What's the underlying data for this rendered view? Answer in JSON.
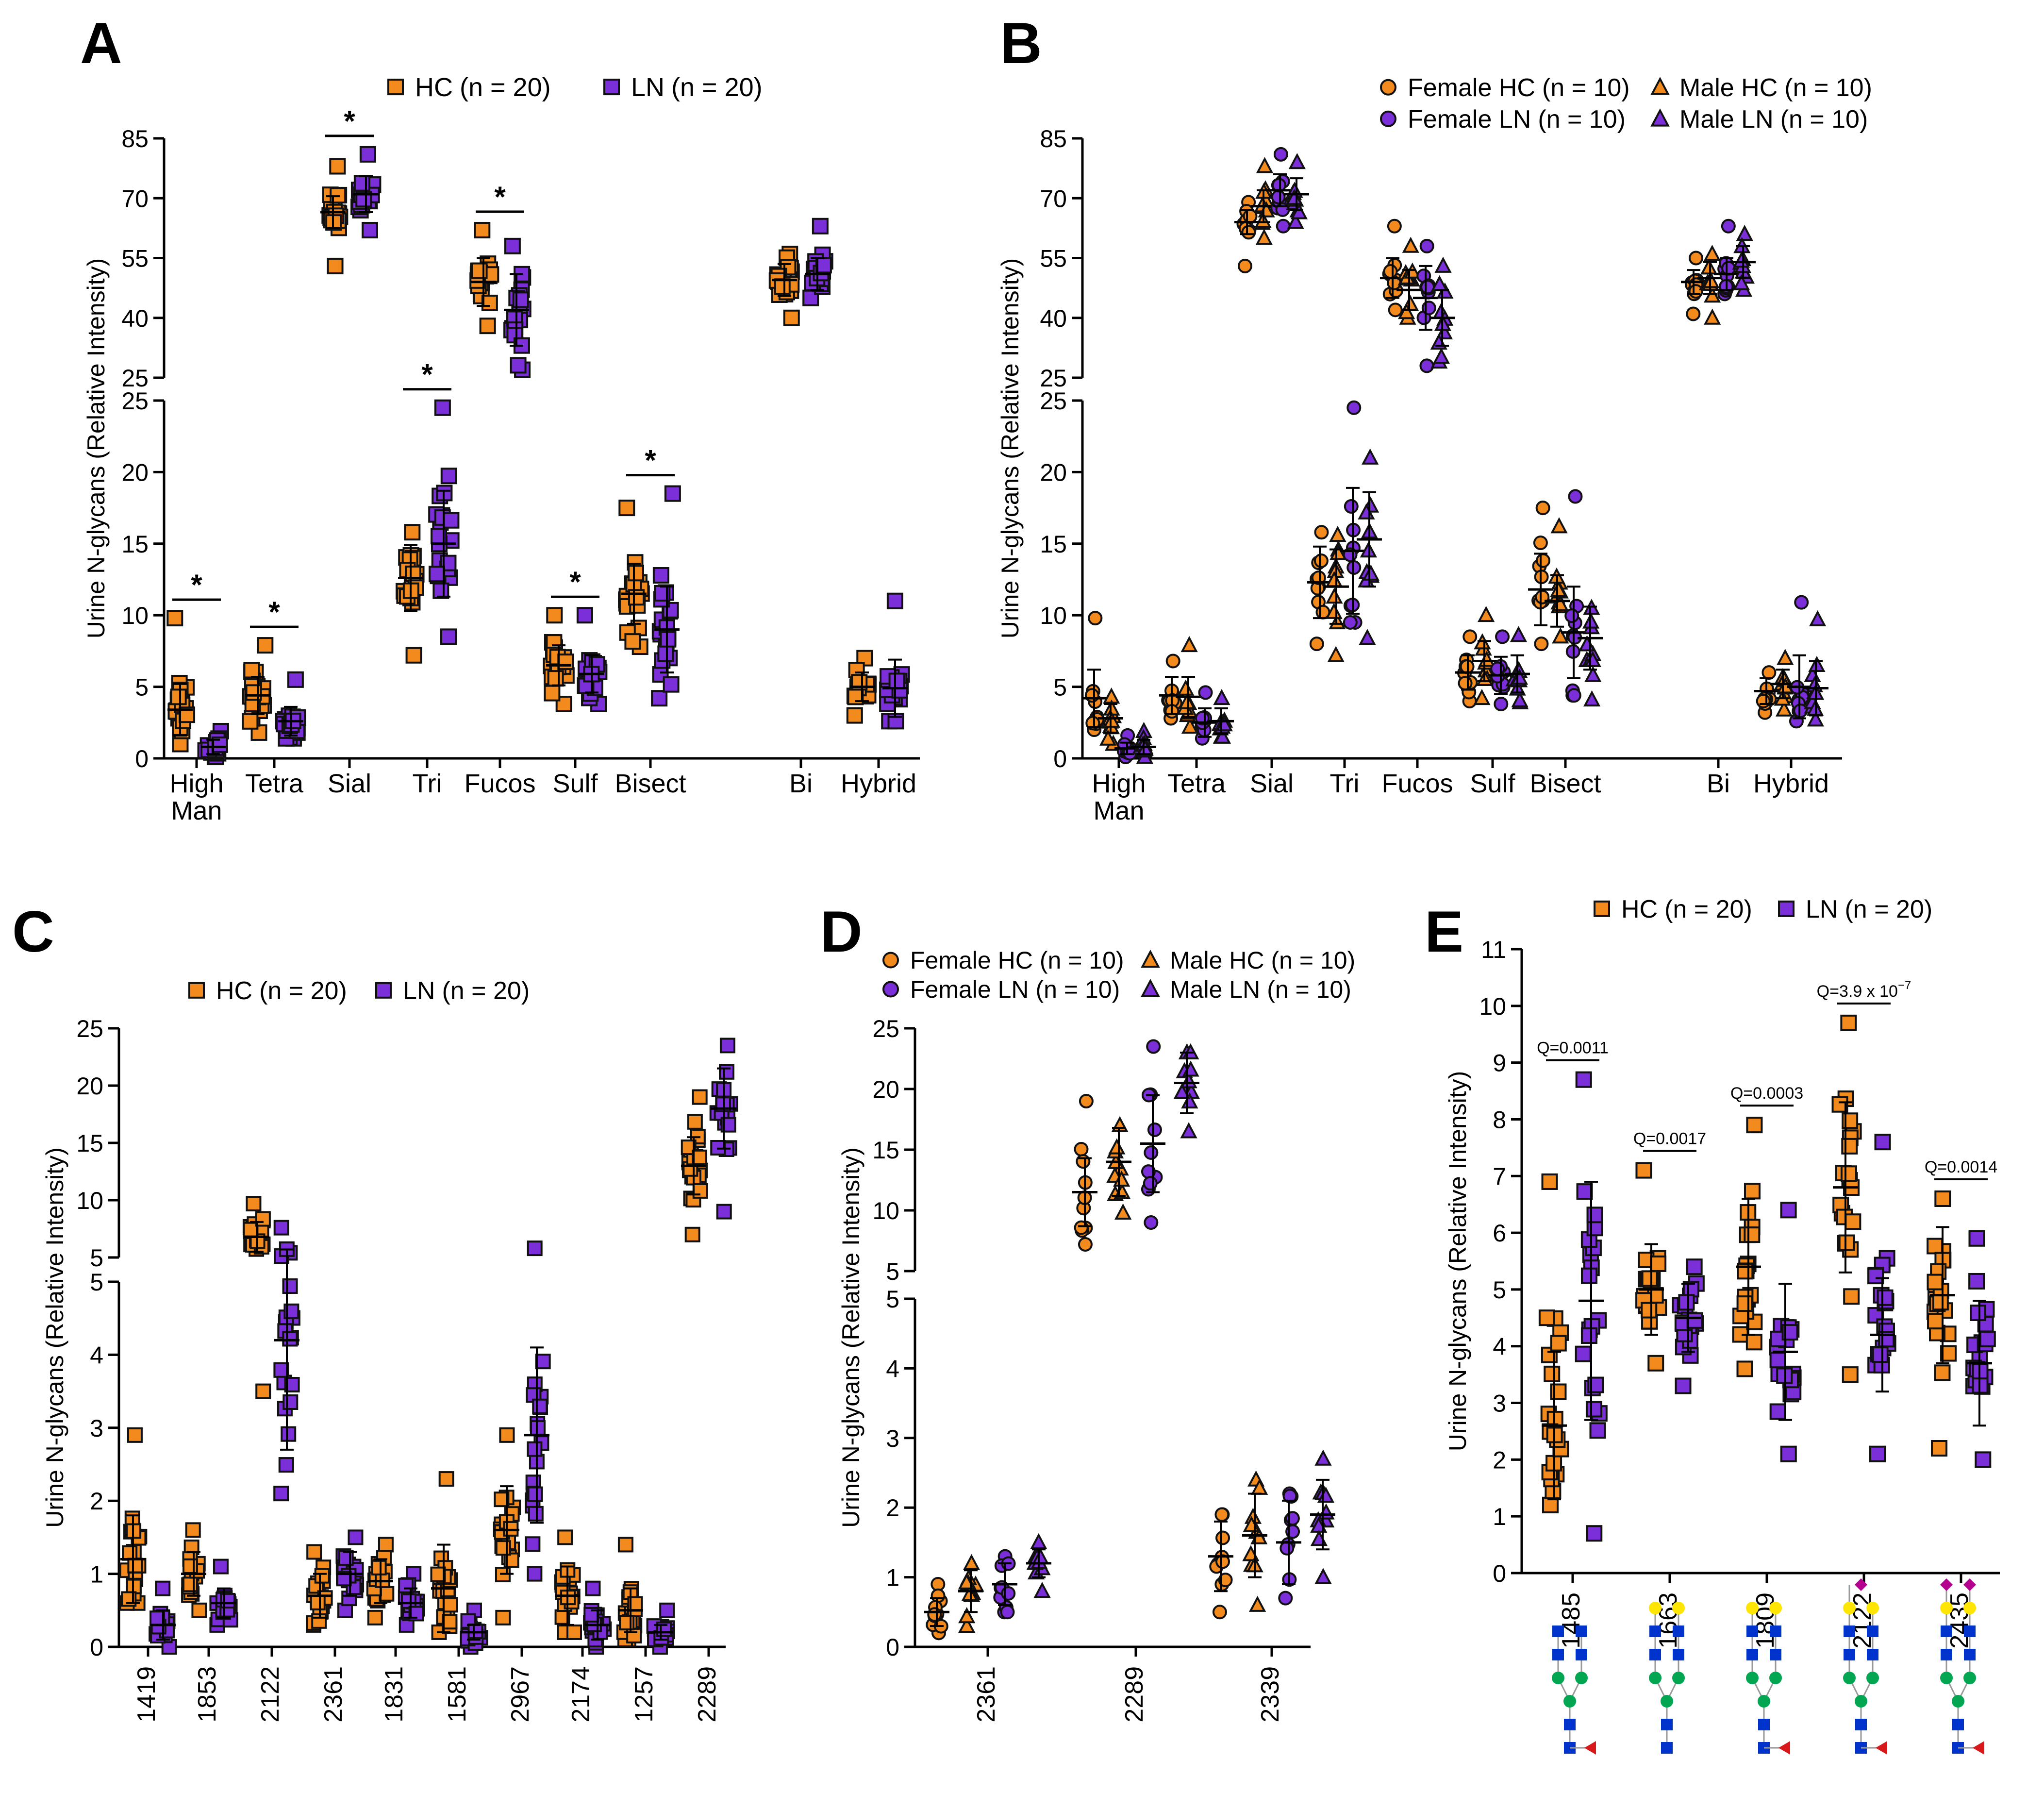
{
  "figure": {
    "colors": {
      "hc": "#F28A1E",
      "ln": "#7B2FD9",
      "outline": "#111111",
      "mannose": "#00A651",
      "glcnac": "#0033CC",
      "galactose": "#FFE600",
      "fucose": "#D7191C",
      "neuac": "#B5008F"
    }
  },
  "chart_data": [
    {
      "panel": "A",
      "type": "scatter",
      "ylabel": "Urine N-glycans (Relative Intensity)",
      "legend": [
        {
          "label": "HC",
          "n": "(n = 20)",
          "shape": "square",
          "color": "#F28A1E"
        },
        {
          "label": "LN",
          "n": "(n = 20)",
          "shape": "square",
          "color": "#7B2FD9"
        }
      ],
      "categories": [
        "High Man",
        "Tetra",
        "Sial",
        "Tri",
        "Fucos",
        "Sulf",
        "Bisect",
        "Bi",
        "Hybrid"
      ],
      "upper_ticks": [
        "85",
        "70",
        "55",
        "40",
        "25"
      ],
      "lower_ticks": [
        "25",
        "20",
        "15",
        "10",
        "5",
        "0"
      ],
      "ylim_lower": [
        0,
        25
      ],
      "ylim_upper": [
        25,
        85
      ],
      "significance": [
        {
          "category": "High Man",
          "label": "*"
        },
        {
          "category": "Tetra",
          "label": "*"
        },
        {
          "category": "Sial",
          "label": "*"
        },
        {
          "category": "Tri",
          "label": "*"
        },
        {
          "category": "Fucos",
          "label": "*"
        },
        {
          "category": "Sulf",
          "label": "*"
        },
        {
          "category": "Bisect",
          "label": "*"
        }
      ],
      "series": [
        {
          "name": "HC",
          "mean": [
            3.4,
            4.4,
            66.5,
            12.6,
            49,
            6.5,
            11.5,
            49.5,
            5.0
          ],
          "sd": [
            1.8,
            1.3,
            4,
            2.3,
            6,
            1.4,
            2.1,
            4,
            1.0
          ],
          "min": [
            1.0,
            1.8,
            53,
            7.2,
            38,
            3.8,
            7.8,
            40,
            3.0
          ],
          "max": [
            9.8,
            7.9,
            78,
            15.8,
            62,
            10.0,
            17.5,
            56,
            7.0
          ]
        },
        {
          "name": "LN",
          "mean": [
            0.8,
            2.6,
            71,
            15.0,
            42,
            5.9,
            9.0,
            51,
            4.9
          ],
          "sd": [
            0.5,
            1.0,
            4.5,
            3.7,
            9,
            1.3,
            3.0,
            4,
            2.0
          ],
          "min": [
            0.1,
            1.4,
            62,
            8.5,
            27,
            3.8,
            4.2,
            45,
            2.6
          ],
          "max": [
            1.9,
            5.5,
            81,
            24.5,
            58,
            10.0,
            18.5,
            63,
            11.0
          ]
        }
      ]
    },
    {
      "panel": "B",
      "type": "scatter",
      "ylabel": "Urine N-glycans (Relative Intensity)",
      "legend": [
        {
          "label": "Female HC",
          "n": "(n = 10)",
          "shape": "circle",
          "color": "#F28A1E"
        },
        {
          "label": "Male HC",
          "n": "(n = 10)",
          "shape": "triangle",
          "color": "#F28A1E"
        },
        {
          "label": "Female LN",
          "n": "(n = 10)",
          "shape": "circle",
          "color": "#7B2FD9"
        },
        {
          "label": "Male LN",
          "n": "(n = 10)",
          "shape": "triangle",
          "color": "#7B2FD9"
        }
      ],
      "categories": [
        "High Man",
        "Tetra",
        "Sial",
        "Tri",
        "Fucos",
        "Sulf",
        "Bisect",
        "Bi",
        "Hybrid"
      ],
      "upper_ticks": [
        "85",
        "70",
        "55",
        "40",
        "25"
      ],
      "lower_ticks": [
        "25",
        "20",
        "15",
        "10",
        "5",
        "0"
      ],
      "ylim_lower": [
        0,
        25
      ],
      "ylim_upper": [
        25,
        85
      ],
      "series": [
        {
          "name": "Female HC",
          "mean": [
            4.2,
            4.4,
            64,
            12.3,
            50,
            6.0,
            11.8,
            49,
            4.7
          ],
          "sd": [
            2.0,
            1.3,
            3,
            2.5,
            5,
            1.2,
            2.5,
            3,
            0.9
          ],
          "min": [
            2.0,
            2.8,
            53,
            8.0,
            42,
            4.0,
            8.0,
            41,
            3.2
          ],
          "max": [
            9.8,
            6.8,
            69,
            15.8,
            63,
            8.5,
            17.5,
            55,
            6.0
          ]
        },
        {
          "name": "Male HC",
          "mean": [
            2.8,
            4.3,
            68,
            12.0,
            47,
            6.8,
            11.0,
            50,
            5.2
          ],
          "sd": [
            1.0,
            1.4,
            4,
            2.6,
            5,
            1.4,
            1.8,
            4,
            1.0
          ],
          "min": [
            1.0,
            2.2,
            60,
            7.2,
            40,
            4.2,
            8.5,
            40,
            3.4
          ],
          "max": [
            4.3,
            7.9,
            78,
            15.6,
            58,
            10.0,
            16.2,
            56,
            7.0
          ]
        },
        {
          "name": "Female LN",
          "mean": [
            0.7,
            2.5,
            72,
            14.5,
            45,
            5.8,
            8.8,
            51,
            5.0
          ],
          "sd": [
            0.4,
            1.0,
            4,
            4.4,
            8,
            1.3,
            3.2,
            4,
            2.2
          ],
          "min": [
            0.1,
            1.4,
            63,
            9.5,
            28,
            3.8,
            4.4,
            46,
            2.6
          ],
          "max": [
            1.6,
            4.6,
            81,
            24.5,
            58,
            8.5,
            18.3,
            63,
            10.9
          ]
        },
        {
          "name": "Male LN",
          "mean": [
            0.8,
            2.6,
            71,
            15.3,
            40,
            5.9,
            8.4,
            54,
            4.9
          ],
          "sd": [
            0.5,
            0.9,
            4,
            3.3,
            7,
            1.3,
            2.2,
            4,
            1.9
          ],
          "min": [
            0.1,
            1.5,
            64,
            8.4,
            29,
            3.9,
            4.1,
            47,
            2.7
          ],
          "max": [
            1.9,
            4.2,
            79,
            21.0,
            53,
            8.6,
            10.5,
            61,
            9.7
          ]
        }
      ]
    },
    {
      "panel": "C",
      "type": "scatter",
      "ylabel": "Urine N-glycans (Relative Intensity)",
      "legend": [
        {
          "label": "HC",
          "n": "(n = 20)",
          "shape": "square",
          "color": "#F28A1E"
        },
        {
          "label": "LN",
          "n": "(n = 20)",
          "shape": "square",
          "color": "#7B2FD9"
        }
      ],
      "categories": [
        "1419",
        "1853",
        "2122",
        "2361",
        "1831",
        "1581",
        "2967",
        "2174",
        "1257",
        "2289"
      ],
      "upper_ticks": [
        "25",
        "20",
        "15",
        "10",
        "5"
      ],
      "lower_ticks": [
        "5",
        "4",
        "3",
        "2",
        "1",
        "0"
      ],
      "ylim_lower": [
        0,
        5
      ],
      "ylim_upper": [
        5,
        25
      ],
      "series": [
        {
          "name": "HC",
          "mean": [
            1.2,
            1.0,
            6.8,
            0.7,
            0.9,
            0.8,
            1.6,
            0.7,
            0.5,
            13.0
          ],
          "sd": [
            0.6,
            0.3,
            1.3,
            0.3,
            0.3,
            0.6,
            0.6,
            0.4,
            0.3,
            2.5
          ],
          "min": [
            0.6,
            0.5,
            3.5,
            0.3,
            0.4,
            0.2,
            0.4,
            0.2,
            0.1,
            7.0
          ],
          "max": [
            2.9,
            1.6,
            9.7,
            1.3,
            1.4,
            2.3,
            2.9,
            1.5,
            1.4,
            19.0
          ]
        },
        {
          "name": "LN",
          "mean": [
            0.3,
            0.6,
            4.2,
            1.0,
            0.6,
            0.2,
            2.9,
            0.3,
            0.2,
            18.0
          ],
          "sd": [
            0.2,
            0.2,
            1.5,
            0.3,
            0.2,
            0.1,
            1.2,
            0.2,
            0.1,
            3.5
          ],
          "min": [
            0.0,
            0.3,
            2.1,
            0.5,
            0.3,
            0.0,
            1.0,
            0.0,
            0.0,
            9.0
          ],
          "max": [
            0.8,
            1.1,
            7.6,
            1.5,
            1.0,
            0.5,
            5.8,
            0.8,
            0.5,
            23.5
          ]
        }
      ]
    },
    {
      "panel": "D",
      "type": "scatter",
      "ylabel": "Urine N-glycans (Relative Intensity)",
      "legend": [
        {
          "label": "Female HC",
          "n": "(n = 10)",
          "shape": "circle",
          "color": "#F28A1E"
        },
        {
          "label": "Male HC",
          "n": "(n = 10)",
          "shape": "triangle",
          "color": "#F28A1E"
        },
        {
          "label": "Female LN",
          "n": "(n = 10)",
          "shape": "circle",
          "color": "#7B2FD9"
        },
        {
          "label": "Male LN",
          "n": "(n = 10)",
          "shape": "triangle",
          "color": "#7B2FD9"
        }
      ],
      "categories": [
        "2361",
        "2289",
        "2339"
      ],
      "upper_ticks": [
        "25",
        "20",
        "15",
        "10",
        "5"
      ],
      "lower_ticks": [
        "5",
        "4",
        "3",
        "2",
        "1",
        "0"
      ],
      "ylim_lower": [
        0,
        5
      ],
      "ylim_upper": [
        5,
        25
      ],
      "series": [
        {
          "name": "Female HC",
          "mean": [
            0.5,
            11.5,
            1.3
          ],
          "sd": [
            0.2,
            2.8,
            0.5
          ],
          "min": [
            0.2,
            7.2,
            0.5
          ],
          "max": [
            0.9,
            19.0,
            1.9
          ]
        },
        {
          "name": "Male HC",
          "mean": [
            0.8,
            14.0,
            1.6
          ],
          "sd": [
            0.3,
            2.8,
            0.6
          ],
          "min": [
            0.3,
            9.8,
            0.6
          ],
          "max": [
            1.2,
            17.0,
            2.4
          ]
        },
        {
          "name": "Female LN",
          "mean": [
            0.9,
            15.5,
            1.5
          ],
          "sd": [
            0.3,
            4.0,
            0.6
          ],
          "min": [
            0.5,
            9.0,
            0.7
          ],
          "max": [
            1.3,
            23.5,
            2.2
          ]
        },
        {
          "name": "Male LN",
          "mean": [
            1.2,
            20.5,
            1.9
          ],
          "sd": [
            0.2,
            2.5,
            0.5
          ],
          "min": [
            0.8,
            16.5,
            1.0
          ],
          "max": [
            1.5,
            23.0,
            2.7
          ]
        }
      ]
    },
    {
      "panel": "E",
      "type": "scatter",
      "ylabel": "Urine N-glycans (Relative Intensity)",
      "legend": [
        {
          "label": "HC",
          "n": "(n = 20)",
          "shape": "square",
          "color": "#F28A1E"
        },
        {
          "label": "LN",
          "n": "(n = 20)",
          "shape": "square",
          "color": "#7B2FD9"
        }
      ],
      "categories": [
        "1485",
        "1663",
        "1809",
        "2122",
        "2435"
      ],
      "ticks": [
        "11",
        "10",
        "9",
        "8",
        "7",
        "6",
        "5",
        "4",
        "3",
        "2",
        "1",
        "0"
      ],
      "ylim": [
        0,
        11
      ],
      "significance": [
        {
          "category": "1485",
          "label": "Q=0.0011"
        },
        {
          "category": "1663",
          "label": "Q=0.0017"
        },
        {
          "category": "1809",
          "label": "Q=0.0003"
        },
        {
          "category": "2122",
          "label": "Q=3.9 x 10",
          "exponent": "−7"
        },
        {
          "category": "2435",
          "label": "Q=0.0014"
        }
      ],
      "glycans": [
        [
          "GlcNAc",
          "GlcNAc",
          "Man",
          "Man",
          "Man",
          "GlcNAc",
          "GlcNAc",
          "Fuc"
        ],
        [
          "Gal",
          "Gal",
          "GlcNAc",
          "GlcNAc",
          "Man",
          "Man",
          "Man",
          "GlcNAc",
          "GlcNAc"
        ],
        [
          "Gal",
          "Gal",
          "GlcNAc",
          "GlcNAc",
          "Man",
          "Man",
          "Man",
          "GlcNAc",
          "GlcNAc",
          "Fuc"
        ],
        [
          "NeuAc",
          "Gal",
          "Gal",
          "GlcNAc",
          "GlcNAc",
          "Man",
          "Man",
          "Man",
          "GlcNAc",
          "GlcNAc",
          "Fuc"
        ],
        [
          "NeuAc",
          "NeuAc",
          "Gal",
          "Gal",
          "GlcNAc",
          "GlcNAc",
          "Man",
          "Man",
          "Man",
          "GlcNAc",
          "GlcNAc",
          "Fuc"
        ]
      ],
      "series": [
        {
          "name": "HC",
          "mean": [
            2.6,
            5.0,
            5.4,
            6.8,
            4.9
          ],
          "sd": [
            1.3,
            0.8,
            1.2,
            1.5,
            1.2
          ],
          "min": [
            1.2,
            3.7,
            3.6,
            3.5,
            2.2
          ],
          "max": [
            6.9,
            7.1,
            7.9,
            9.7,
            6.6
          ]
        },
        {
          "name": "LN",
          "mean": [
            4.8,
            4.5,
            3.9,
            4.2,
            3.7
          ],
          "sd": [
            2.1,
            0.6,
            1.2,
            1.0,
            1.1
          ],
          "min": [
            0.7,
            3.3,
            2.1,
            2.1,
            2.0
          ],
          "max": [
            8.7,
            5.4,
            6.4,
            7.6,
            5.9
          ]
        }
      ]
    }
  ]
}
